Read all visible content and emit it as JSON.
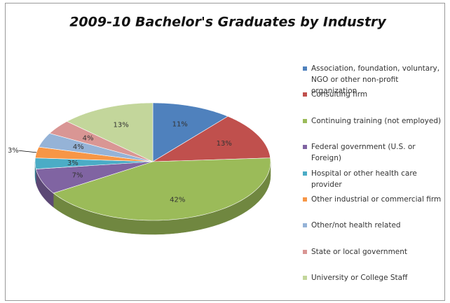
{
  "chart_data": {
    "type": "pie3d",
    "title": "2009-10 Bachelor's Graduates by Industry",
    "categories": [
      "Association, foundation, voluntary, NGO or other non-profit organization",
      "Consulting firm",
      "Continuing training (not employed)",
      "Federal government (U.S. or Foreign)",
      "Hospital or other health care provider",
      "Other industrial or commercial firm",
      "Other/not health related",
      "State or local government",
      "University or College Staff"
    ],
    "values": [
      11,
      13,
      42,
      7,
      3,
      3,
      4,
      4,
      13
    ],
    "value_labels": [
      "11%",
      "13%",
      "42%",
      "7%",
      "3%",
      "3%",
      "4%",
      "4%",
      "13%"
    ],
    "colors": [
      "#4f81bd",
      "#c0504d",
      "#9bbb59",
      "#8064a2",
      "#4bacc6",
      "#f79646",
      "#95b3d7",
      "#d99694",
      "#c3d69b"
    ],
    "legend": "right"
  }
}
